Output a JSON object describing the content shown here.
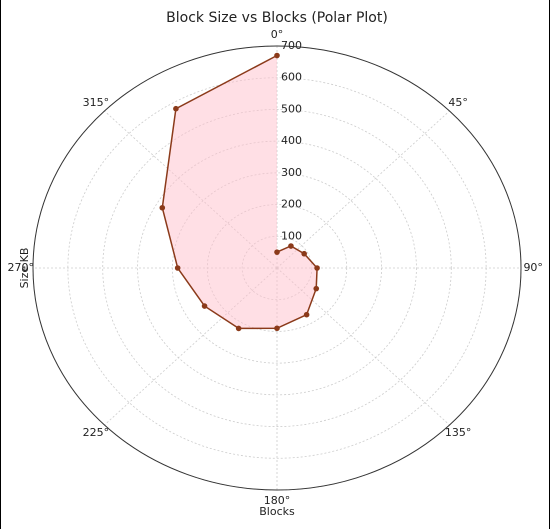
{
  "chart_data": {
    "type": "polar",
    "title": "Block Size vs Blocks (Polar Plot)",
    "xlabel": "Blocks",
    "ylabel": "Size KB",
    "theta": [
      0,
      30,
      60,
      90,
      120,
      150,
      180,
      210,
      240,
      270,
      300,
      330,
      360
    ],
    "series": [
      {
        "color": "#8b3a1a",
        "fill": "#ffc0cb",
        "values": [
          50,
          80,
          90,
          115,
          130,
          170,
          190,
          220,
          240,
          285,
          380,
          580,
          670
        ]
      }
    ],
    "theta_direction": "clockwise",
    "theta_zero": "N",
    "rlim": [
      0,
      700
    ],
    "rticks": [
      100,
      200,
      300,
      400,
      500,
      600,
      700
    ],
    "thetaticks": [
      {
        "value": 0,
        "label": "0°"
      },
      {
        "value": 45,
        "label": "45°"
      },
      {
        "value": 90,
        "label": "90°"
      },
      {
        "value": 135,
        "label": "135°"
      },
      {
        "value": 180,
        "label": "180°"
      },
      {
        "value": 225,
        "label": "225°"
      },
      {
        "value": 270,
        "label": "270°"
      },
      {
        "value": 315,
        "label": "315°"
      }
    ],
    "grid": true
  }
}
